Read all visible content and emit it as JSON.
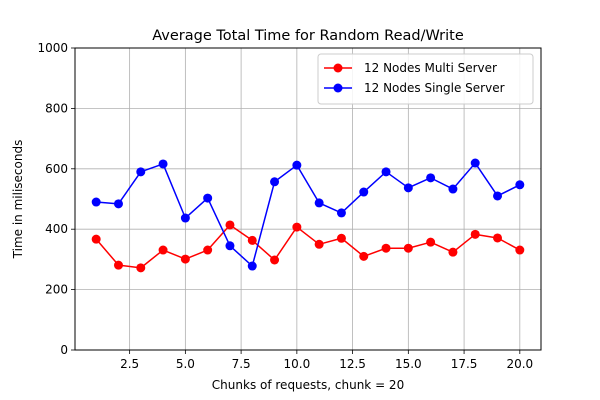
{
  "chart_data": {
    "type": "line",
    "title": "Average Total Time for Random Read/Write",
    "xlabel": "Chunks of requests, chunk = 20",
    "ylabel": "Time in miliseconds",
    "xlim": [
      0.05,
      20.95
    ],
    "ylim": [
      0,
      1000
    ],
    "xticks": [
      2.5,
      5.0,
      7.5,
      10.0,
      12.5,
      15.0,
      17.5,
      20.0
    ],
    "xtick_labels": [
      "2.5",
      "5.0",
      "7.5",
      "10.0",
      "12.5",
      "15.0",
      "17.5",
      "20.0"
    ],
    "yticks": [
      0,
      200,
      400,
      600,
      800,
      1000
    ],
    "ytick_labels": [
      "0",
      "200",
      "400",
      "600",
      "800",
      "1000"
    ],
    "grid": true,
    "legend_position": "top-right",
    "x": [
      1,
      2,
      3,
      4,
      5,
      6,
      7,
      8,
      9,
      10,
      11,
      12,
      13,
      14,
      15,
      16,
      17,
      18,
      19,
      20
    ],
    "series": [
      {
        "name": "12 Nodes Multi Server",
        "color": "#ff0000",
        "values": [
          367,
          281,
          272,
          331,
          301,
          331,
          414,
          363,
          298,
          407,
          350,
          370,
          310,
          337,
          337,
          357,
          324,
          383,
          371,
          331
        ]
      },
      {
        "name": "12 Nodes Single Server",
        "color": "#0000ff",
        "values": [
          490,
          484,
          590,
          616,
          437,
          503,
          345,
          278,
          557,
          612,
          487,
          454,
          523,
          590,
          537,
          570,
          533,
          619,
          510,
          547
        ]
      }
    ]
  }
}
